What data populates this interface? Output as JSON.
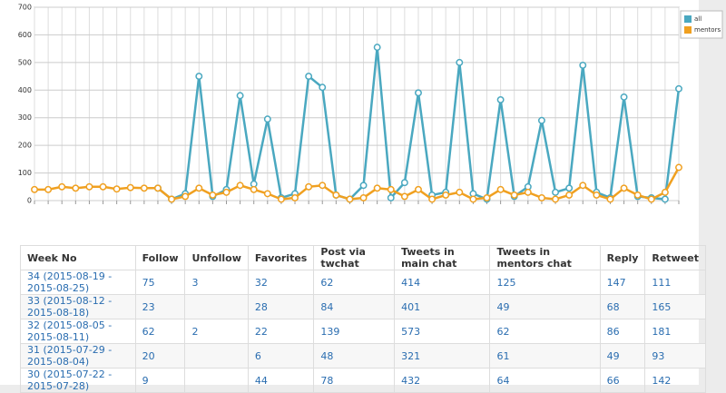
{
  "chart_data": {
    "type": "line",
    "categories": [
      null,
      null,
      null,
      null,
      null,
      null,
      null,
      null,
      null,
      null,
      null,
      null,
      null,
      null,
      null,
      null,
      null,
      null,
      null,
      null,
      null,
      null,
      null,
      null,
      null,
      null,
      null,
      null,
      null,
      null,
      null,
      null,
      null,
      null,
      null,
      null,
      null,
      null,
      null,
      null,
      null,
      null,
      null,
      null,
      null,
      null,
      null,
      null
    ],
    "series": [
      {
        "name": "all",
        "color": "#4aa8c0",
        "values": [
          null,
          null,
          null,
          null,
          null,
          null,
          null,
          null,
          null,
          45,
          5,
          25,
          450,
          15,
          40,
          380,
          60,
          295,
          10,
          25,
          450,
          410,
          20,
          5,
          55,
          555,
          10,
          65,
          390,
          20,
          30,
          500,
          25,
          5,
          365,
          15,
          50,
          290,
          30,
          45,
          490,
          30,
          10,
          375,
          15,
          10,
          5,
          405
        ]
      },
      {
        "name": "mentors",
        "color": "#f0a020",
        "values": [
          40,
          40,
          50,
          45,
          50,
          50,
          42,
          47,
          45,
          45,
          5,
          15,
          45,
          20,
          30,
          55,
          40,
          25,
          5,
          10,
          50,
          55,
          20,
          5,
          10,
          45,
          40,
          15,
          40,
          5,
          20,
          30,
          5,
          10,
          40,
          20,
          30,
          10,
          5,
          20,
          55,
          20,
          5,
          45,
          20,
          5,
          30,
          120
        ]
      }
    ],
    "ylim": [
      0,
      700
    ],
    "yticks": [
      0,
      100,
      200,
      300,
      400,
      500,
      600,
      700
    ],
    "grid": true,
    "legend": "top-right"
  },
  "table": {
    "header": [
      "Week No",
      "Follow",
      "Unfollow",
      "Favorites",
      "Post via twchat",
      "Tweets in main chat",
      "Tweets in mentors chat",
      "Reply",
      "Retweet"
    ],
    "rows": [
      [
        "34 (2015-08-19 - 2015-08-25)",
        "75",
        "3",
        "32",
        "62",
        "414",
        "125",
        "147",
        "111"
      ],
      [
        "33 (2015-08-12 - 2015-08-18)",
        "23",
        null,
        "28",
        "84",
        "401",
        "49",
        "68",
        "165"
      ],
      [
        "32 (2015-08-05 - 2015-08-11)",
        "62",
        "2",
        "22",
        "139",
        "573",
        "62",
        "86",
        "181"
      ],
      [
        "31 (2015-07-29 - 2015-08-04)",
        "20",
        null,
        "6",
        "48",
        "321",
        "61",
        "49",
        "93"
      ],
      [
        "30 (2015-07-22 - 2015-07-28)",
        "9",
        null,
        "44",
        "78",
        "432",
        "64",
        "66",
        "142"
      ]
    ]
  }
}
